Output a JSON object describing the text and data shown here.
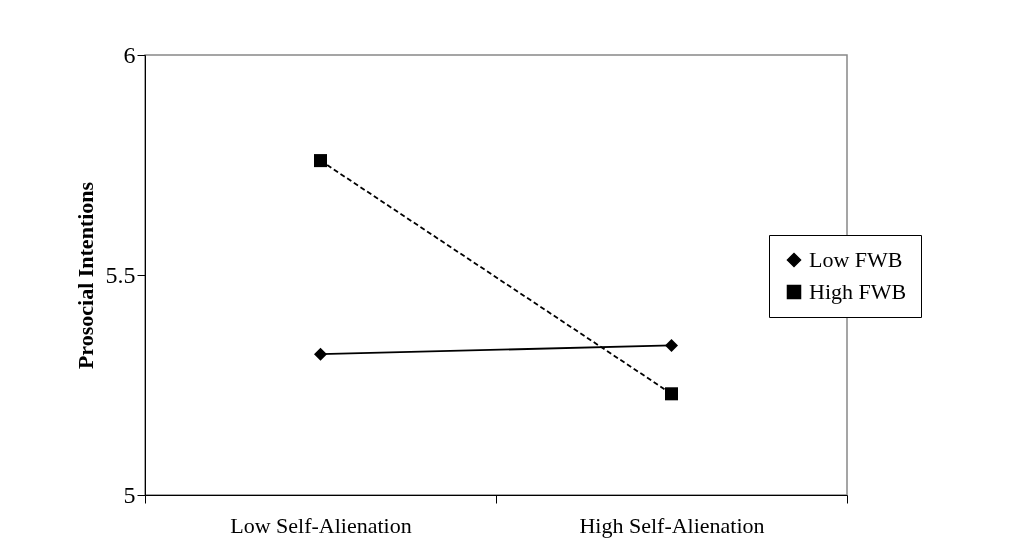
{
  "chart_data": {
    "type": "line",
    "ylabel": "Prosocial Intentions",
    "categories": [
      "Low Self-Alienation",
      "High Self-Alienation"
    ],
    "series": [
      {
        "name": "Low FWB",
        "color": "#000000",
        "marker": "diamond",
        "line_style": "solid",
        "values": [
          5.32,
          5.34
        ]
      },
      {
        "name": "High FWB",
        "color": "#000000",
        "marker": "square",
        "line_style": "dashed",
        "values": [
          5.76,
          5.23
        ]
      }
    ],
    "ylim": [
      5,
      6
    ],
    "yticks": [
      5,
      5.5,
      6
    ],
    "grid": false,
    "legend": "right"
  }
}
